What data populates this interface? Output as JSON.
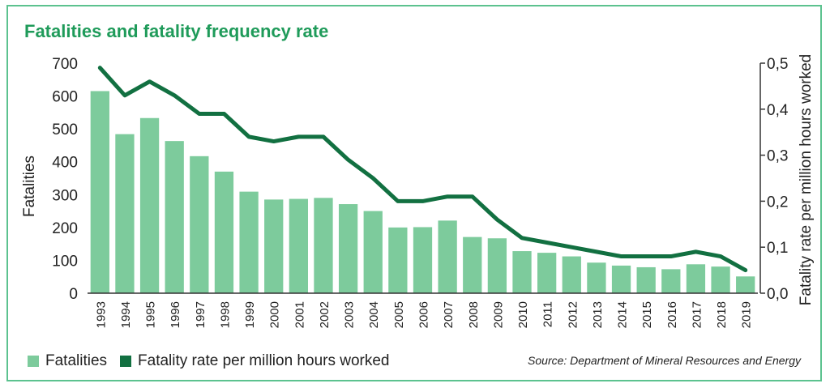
{
  "title": "Fatalities and fatality frequency rate",
  "source": "Source: Department of Mineral Resources and Energy",
  "colors": {
    "bar": "#7dcb9c",
    "line": "#127041",
    "title": "#1f9b5a",
    "border": "#5cc28f"
  },
  "legend": {
    "bar_label": "Fatalities",
    "line_label": "Fatality rate per million hours worked"
  },
  "chart_data": {
    "type": "bar",
    "title": "Fatalities and fatality frequency rate",
    "xlabel": "",
    "ylabel": "Fatalities",
    "y2label": "Fatality rate per million hours worked",
    "ylim": [
      0,
      700
    ],
    "y2lim": [
      0,
      0.5
    ],
    "yticks": [
      "0",
      "100",
      "200",
      "300",
      "400",
      "500",
      "600",
      "700"
    ],
    "y2ticks": [
      "0,0",
      "0,1",
      "0,2",
      "0,3",
      "0,4",
      "0,5"
    ],
    "categories": [
      "1993",
      "1994",
      "1995",
      "1996",
      "1997",
      "1998",
      "1999",
      "2000",
      "2001",
      "2002",
      "2003",
      "2004",
      "2005",
      "2006",
      "2007",
      "2008",
      "2009",
      "2010",
      "2011",
      "2012",
      "2013",
      "2014",
      "2015",
      "2016",
      "2017",
      "2018",
      "2019"
    ],
    "series": [
      {
        "name": "Fatalities",
        "type": "bar",
        "axis": "left",
        "values": [
          615,
          484,
          533,
          463,
          417,
          370,
          309,
          285,
          287,
          290,
          271,
          250,
          200,
          201,
          221,
          171,
          167,
          128,
          123,
          112,
          93,
          84,
          79,
          73,
          88,
          81,
          51
        ]
      },
      {
        "name": "Fatality rate per million hours worked",
        "type": "line",
        "axis": "right",
        "values": [
          0.49,
          0.43,
          0.46,
          0.43,
          0.39,
          0.39,
          0.34,
          0.33,
          0.34,
          0.34,
          0.29,
          0.25,
          0.2,
          0.2,
          0.21,
          0.21,
          0.16,
          0.12,
          0.11,
          0.1,
          0.09,
          0.08,
          0.08,
          0.08,
          0.09,
          0.08,
          0.05
        ]
      }
    ],
    "grid": false,
    "legend_position": "bottom-left"
  }
}
